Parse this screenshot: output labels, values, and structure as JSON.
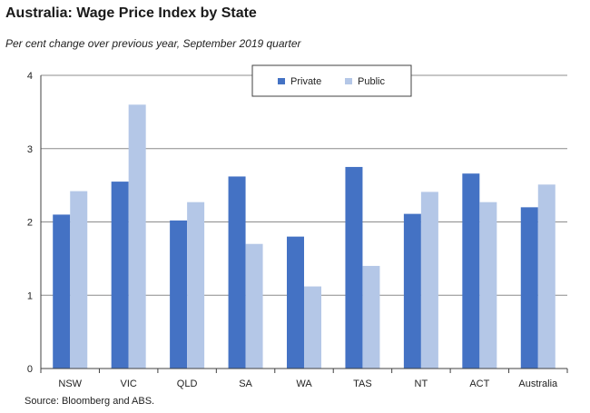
{
  "title": "Australia: Wage Price Index by State",
  "subtitle": "Per cent change over previous year, September 2019 quarter",
  "source": "Source: Bloomberg and ABS.",
  "colors": {
    "private": "#4472c4",
    "public": "#b4c7e7"
  },
  "chart_data": {
    "type": "bar",
    "categories": [
      "NSW",
      "VIC",
      "QLD",
      "SA",
      "WA",
      "TAS",
      "NT",
      "ACT",
      "Australia"
    ],
    "series": [
      {
        "name": "Private",
        "values": [
          2.1,
          2.55,
          2.02,
          2.62,
          1.8,
          2.75,
          2.11,
          2.66,
          2.2
        ]
      },
      {
        "name": "Public",
        "values": [
          2.42,
          3.6,
          2.27,
          1.7,
          1.12,
          1.4,
          2.41,
          2.27,
          2.51
        ]
      }
    ],
    "yticks": [
      "0",
      "1",
      "2",
      "3",
      "4"
    ],
    "ylim": [
      0,
      4
    ],
    "grid": true,
    "legend": "top-center"
  }
}
